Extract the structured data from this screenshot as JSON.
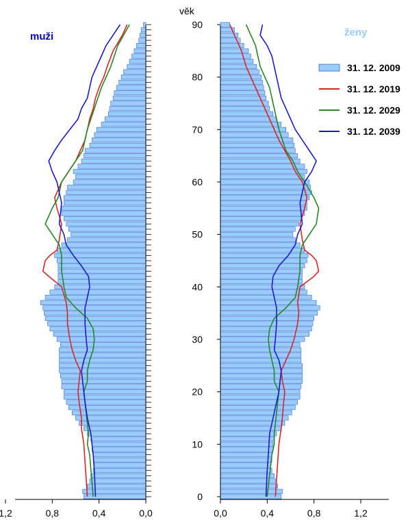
{
  "chart_data": {
    "type": "bar",
    "layout": "population-pyramid",
    "age_axis": {
      "label": "věk",
      "range": [
        0,
        90
      ],
      "ticks": [
        "0",
        "10",
        "20",
        "30",
        "40",
        "50",
        "60",
        "70",
        "80",
        "90"
      ]
    },
    "x_axis": {
      "range": [
        0,
        1.2
      ],
      "ticks_left": [
        "1,2",
        "0,8",
        "0,4",
        "0,0"
      ],
      "ticks_right": [
        "0,0",
        "0,4",
        "0,8",
        "1,2"
      ],
      "unit": "%"
    },
    "panels": [
      {
        "title": "muži",
        "title_color": "#0000cc",
        "side": "left"
      },
      {
        "title": "ženy",
        "title_color": "#99ccff",
        "side": "right"
      }
    ],
    "legend": {
      "placement": "top-right",
      "entries": [
        {
          "label": "31. 12. 2009",
          "kind": "bar",
          "color": "#99ccff",
          "stroke": "#3366cc"
        },
        {
          "label": "31. 12. 2019",
          "kind": "line",
          "color": "#dd2222"
        },
        {
          "label": "31. 12. 2029",
          "kind": "line",
          "color": "#228822"
        },
        {
          "label": "31. 12. 2039",
          "kind": "line",
          "color": "#1a1acc"
        }
      ]
    },
    "series": [
      {
        "name": "31. 12. 2009",
        "type": "bar",
        "sex": "muži",
        "ages": [
          0,
          1,
          2,
          3,
          4,
          5,
          6,
          7,
          8,
          9,
          10,
          11,
          12,
          13,
          14,
          15,
          16,
          17,
          18,
          19,
          20,
          21,
          22,
          23,
          24,
          25,
          26,
          27,
          28,
          29,
          30,
          31,
          32,
          33,
          34,
          35,
          36,
          37,
          38,
          39,
          40,
          41,
          42,
          43,
          44,
          45,
          46,
          47,
          48,
          49,
          50,
          51,
          52,
          53,
          54,
          55,
          56,
          57,
          58,
          59,
          60,
          61,
          62,
          63,
          64,
          65,
          66,
          67,
          68,
          69,
          70,
          71,
          72,
          73,
          74,
          75,
          76,
          77,
          78,
          79,
          80,
          81,
          82,
          83,
          84,
          85,
          86,
          87,
          88,
          89,
          90
        ],
        "values": [
          0.53,
          0.54,
          0.5,
          0.48,
          0.47,
          0.45,
          0.44,
          0.45,
          0.45,
          0.46,
          0.46,
          0.47,
          0.5,
          0.53,
          0.57,
          0.6,
          0.63,
          0.66,
          0.68,
          0.7,
          0.7,
          0.72,
          0.72,
          0.73,
          0.74,
          0.74,
          0.74,
          0.74,
          0.74,
          0.73,
          0.76,
          0.79,
          0.82,
          0.84,
          0.86,
          0.87,
          0.88,
          0.9,
          0.86,
          0.82,
          0.78,
          0.75,
          0.75,
          0.75,
          0.75,
          0.76,
          0.78,
          0.76,
          0.72,
          0.67,
          0.64,
          0.66,
          0.68,
          0.7,
          0.72,
          0.72,
          0.7,
          0.7,
          0.68,
          0.67,
          0.62,
          0.6,
          0.62,
          0.58,
          0.55,
          0.53,
          0.52,
          0.48,
          0.46,
          0.44,
          0.42,
          0.38,
          0.35,
          0.32,
          0.31,
          0.3,
          0.28,
          0.27,
          0.25,
          0.23,
          0.21,
          0.19,
          0.16,
          0.14,
          0.12,
          0.1,
          0.08,
          0.06,
          0.05,
          0.04,
          0.02
        ]
      },
      {
        "name": "31. 12. 2019",
        "type": "line",
        "sex": "muži",
        "ages": [
          0,
          10,
          13,
          15,
          18,
          20,
          22,
          24,
          26,
          28,
          30,
          33,
          35,
          37,
          40,
          42,
          43,
          45,
          46,
          47,
          49,
          52,
          55,
          57,
          60,
          62,
          64,
          66,
          68,
          70,
          72,
          74,
          76,
          78,
          80,
          82,
          85,
          88,
          90
        ],
        "values": [
          0.5,
          0.53,
          0.55,
          0.55,
          0.57,
          0.58,
          0.57,
          0.56,
          0.6,
          0.63,
          0.65,
          0.67,
          0.67,
          0.68,
          0.72,
          0.83,
          0.88,
          0.86,
          0.82,
          0.76,
          0.74,
          0.72,
          0.76,
          0.78,
          0.72,
          0.66,
          0.6,
          0.56,
          0.52,
          0.5,
          0.48,
          0.45,
          0.43,
          0.4,
          0.36,
          0.33,
          0.28,
          0.2,
          0.16
        ]
      },
      {
        "name": "31. 12. 2029",
        "type": "line",
        "sex": "muži",
        "ages": [
          0,
          8,
          10,
          12,
          14,
          16,
          18,
          20,
          22,
          24,
          26,
          28,
          30,
          32,
          34,
          36,
          38,
          40,
          43,
          46,
          48,
          52,
          55,
          57,
          60,
          62,
          64,
          66,
          70,
          74,
          78,
          82,
          86,
          90
        ],
        "values": [
          0.45,
          0.48,
          0.5,
          0.49,
          0.5,
          0.51,
          0.52,
          0.53,
          0.5,
          0.5,
          0.48,
          0.45,
          0.44,
          0.45,
          0.5,
          0.6,
          0.68,
          0.7,
          0.72,
          0.72,
          0.74,
          0.86,
          0.8,
          0.75,
          0.72,
          0.66,
          0.6,
          0.54,
          0.5,
          0.44,
          0.38,
          0.3,
          0.24,
          0.14
        ]
      },
      {
        "name": "31. 12. 2039",
        "type": "line",
        "sex": "muži",
        "ages": [
          0,
          5,
          8,
          12,
          15,
          18,
          20,
          22,
          24,
          26,
          28,
          30,
          33,
          36,
          38,
          40,
          42,
          44,
          46,
          48,
          50,
          52,
          56,
          58,
          60,
          62,
          64,
          66,
          68,
          70,
          72,
          74,
          76,
          78,
          80,
          82,
          84,
          86,
          88,
          90
        ],
        "values": [
          0.43,
          0.44,
          0.45,
          0.47,
          0.5,
          0.52,
          0.53,
          0.54,
          0.55,
          0.53,
          0.5,
          0.51,
          0.52,
          0.52,
          0.5,
          0.48,
          0.49,
          0.55,
          0.62,
          0.68,
          0.7,
          0.74,
          0.72,
          0.74,
          0.76,
          0.8,
          0.83,
          0.78,
          0.72,
          0.65,
          0.58,
          0.55,
          0.5,
          0.48,
          0.46,
          0.42,
          0.38,
          0.34,
          0.28,
          0.22
        ]
      },
      {
        "name": "31. 12. 2009",
        "type": "bar",
        "sex": "ženy",
        "ages": [
          0,
          1,
          2,
          3,
          4,
          5,
          6,
          7,
          8,
          9,
          10,
          11,
          12,
          13,
          14,
          15,
          16,
          17,
          18,
          19,
          20,
          21,
          22,
          23,
          24,
          25,
          26,
          27,
          28,
          29,
          30,
          31,
          32,
          33,
          34,
          35,
          36,
          37,
          38,
          39,
          40,
          41,
          42,
          43,
          44,
          45,
          46,
          47,
          48,
          49,
          50,
          51,
          52,
          53,
          54,
          55,
          56,
          57,
          58,
          59,
          60,
          61,
          62,
          63,
          64,
          65,
          66,
          67,
          68,
          69,
          70,
          71,
          72,
          73,
          74,
          75,
          76,
          77,
          78,
          79,
          80,
          81,
          82,
          83,
          84,
          85,
          86,
          87,
          88,
          89,
          90
        ],
        "values": [
          0.52,
          0.53,
          0.49,
          0.47,
          0.46,
          0.44,
          0.43,
          0.44,
          0.44,
          0.45,
          0.45,
          0.46,
          0.48,
          0.52,
          0.55,
          0.58,
          0.61,
          0.64,
          0.66,
          0.68,
          0.68,
          0.69,
          0.7,
          0.7,
          0.7,
          0.7,
          0.69,
          0.69,
          0.69,
          0.68,
          0.72,
          0.76,
          0.78,
          0.79,
          0.8,
          0.83,
          0.85,
          0.82,
          0.78,
          0.74,
          0.72,
          0.7,
          0.7,
          0.7,
          0.72,
          0.74,
          0.75,
          0.72,
          0.68,
          0.64,
          0.62,
          0.64,
          0.67,
          0.69,
          0.72,
          0.74,
          0.74,
          0.76,
          0.78,
          0.77,
          0.76,
          0.72,
          0.74,
          0.72,
          0.68,
          0.66,
          0.64,
          0.63,
          0.62,
          0.58,
          0.56,
          0.52,
          0.48,
          0.45,
          0.42,
          0.41,
          0.39,
          0.38,
          0.37,
          0.36,
          0.35,
          0.33,
          0.31,
          0.28,
          0.26,
          0.24,
          0.2,
          0.17,
          0.15,
          0.12,
          0.08
        ]
      },
      {
        "name": "31. 12. 2019",
        "type": "line",
        "sex": "ženy",
        "ages": [
          0,
          10,
          13,
          15,
          18,
          20,
          22,
          24,
          26,
          28,
          30,
          33,
          35,
          37,
          40,
          42,
          43,
          45,
          46,
          47,
          49,
          52,
          55,
          57,
          60,
          62,
          64,
          66,
          68,
          70,
          72,
          74,
          76,
          78,
          80,
          82,
          85,
          88,
          90
        ],
        "values": [
          0.47,
          0.5,
          0.52,
          0.53,
          0.54,
          0.55,
          0.53,
          0.52,
          0.56,
          0.6,
          0.63,
          0.66,
          0.67,
          0.66,
          0.68,
          0.8,
          0.84,
          0.82,
          0.78,
          0.72,
          0.7,
          0.68,
          0.72,
          0.74,
          0.7,
          0.64,
          0.6,
          0.55,
          0.5,
          0.46,
          0.42,
          0.38,
          0.34,
          0.3,
          0.26,
          0.22,
          0.18,
          0.12,
          0.08
        ]
      },
      {
        "name": "31. 12. 2029",
        "type": "line",
        "sex": "ženy",
        "ages": [
          0,
          8,
          10,
          12,
          14,
          16,
          18,
          20,
          22,
          24,
          26,
          28,
          30,
          32,
          34,
          36,
          38,
          40,
          43,
          46,
          48,
          52,
          55,
          57,
          60,
          62,
          64,
          66,
          70,
          74,
          78,
          82,
          86,
          90
        ],
        "values": [
          0.4,
          0.44,
          0.46,
          0.46,
          0.47,
          0.48,
          0.49,
          0.5,
          0.46,
          0.46,
          0.44,
          0.42,
          0.41,
          0.42,
          0.46,
          0.56,
          0.64,
          0.66,
          0.68,
          0.68,
          0.7,
          0.82,
          0.84,
          0.8,
          0.72,
          0.66,
          0.62,
          0.56,
          0.5,
          0.46,
          0.42,
          0.34,
          0.3,
          0.22
        ]
      },
      {
        "name": "31. 12. 2039",
        "type": "line",
        "sex": "ženy",
        "ages": [
          0,
          5,
          8,
          12,
          15,
          18,
          20,
          22,
          24,
          26,
          28,
          30,
          33,
          36,
          38,
          40,
          42,
          44,
          46,
          48,
          50,
          52,
          56,
          58,
          60,
          62,
          64,
          66,
          68,
          70,
          72,
          74,
          76,
          78,
          80,
          82,
          84,
          86,
          88,
          90
        ],
        "values": [
          0.39,
          0.4,
          0.41,
          0.42,
          0.45,
          0.48,
          0.5,
          0.51,
          0.52,
          0.5,
          0.46,
          0.47,
          0.48,
          0.48,
          0.46,
          0.44,
          0.45,
          0.5,
          0.58,
          0.64,
          0.66,
          0.7,
          0.68,
          0.7,
          0.72,
          0.78,
          0.82,
          0.76,
          0.7,
          0.64,
          0.6,
          0.56,
          0.52,
          0.5,
          0.48,
          0.46,
          0.44,
          0.4,
          0.34,
          0.36
        ]
      }
    ]
  }
}
